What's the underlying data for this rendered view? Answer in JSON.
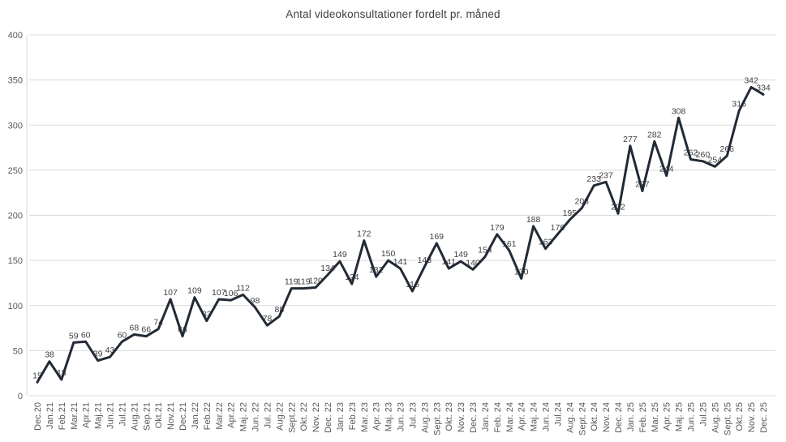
{
  "chart_data": {
    "type": "line",
    "title": "Antal videokonsultationer fordelt pr. måned",
    "categories": [
      "Dec.20",
      "Jan.21",
      "Feb.21",
      "Mar.21",
      "Apr.21",
      "Maj.21",
      "Jun.21",
      "Jul.21",
      "Aug.21",
      "Sep.21",
      "Okt.21",
      "Nov.21",
      "Dec.21",
      "Jan.22",
      "Feb.22",
      "Mar.22",
      "Apr.22",
      "Maj. 22",
      "Jun. 22",
      "Jul. 22",
      "Aug.22",
      "Sept.22",
      "Okt. 22",
      "Nov. 22",
      "Dec. 22",
      "Jan. 23",
      "Feb.23",
      "Mar. 23",
      "Apr. 23",
      "Maj. 23",
      "Jun. 23",
      "Jul. 23",
      "Aug. 23",
      "Sept. 23",
      "Okt. 23",
      "Nov. 23",
      "Dec. 23",
      "Jan. 24",
      "Feb. 24",
      "Mar. 24",
      "Apr. 24",
      "Maj. 24",
      "Jun. 24",
      "Jul.24",
      "Aug. 24",
      "Sept. 24",
      "Okt. 24",
      "Nov. 24",
      "Dec. 24",
      "Jan. 25",
      "Feb. 25",
      "Mar. 25",
      "Apr. 25",
      "Maj. 25",
      "Jun. 25",
      "Jul.25",
      "Aug. 25",
      "Sept. 25",
      "Okt. 25",
      "Nov. 25",
      "Dec. 25"
    ],
    "values": [
      15,
      38,
      18,
      59,
      60,
      39,
      43,
      60,
      68,
      66,
      74,
      107,
      66,
      109,
      83,
      107,
      106,
      112,
      98,
      78,
      88,
      119,
      119,
      120,
      134,
      149,
      124,
      172,
      132,
      150,
      141,
      116,
      143,
      169,
      141,
      149,
      140,
      154,
      179,
      161,
      130,
      188,
      163,
      179,
      195,
      208,
      233,
      237,
      202,
      277,
      227,
      282,
      244,
      308,
      262,
      260,
      254,
      266,
      316,
      342,
      334
    ],
    "xlabel": "",
    "ylabel": "",
    "ylim": [
      0,
      400
    ],
    "yticks": [
      0,
      50,
      100,
      150,
      200,
      250,
      300,
      350,
      400
    ],
    "grid": true,
    "legend_position": "none",
    "show_data_labels": true,
    "colors": {
      "line": "#222a35",
      "data_label": "#404040",
      "axis_label": "#595959",
      "gridline": "#d9d9d9",
      "title": "#404040",
      "background": "#ffffff"
    }
  }
}
